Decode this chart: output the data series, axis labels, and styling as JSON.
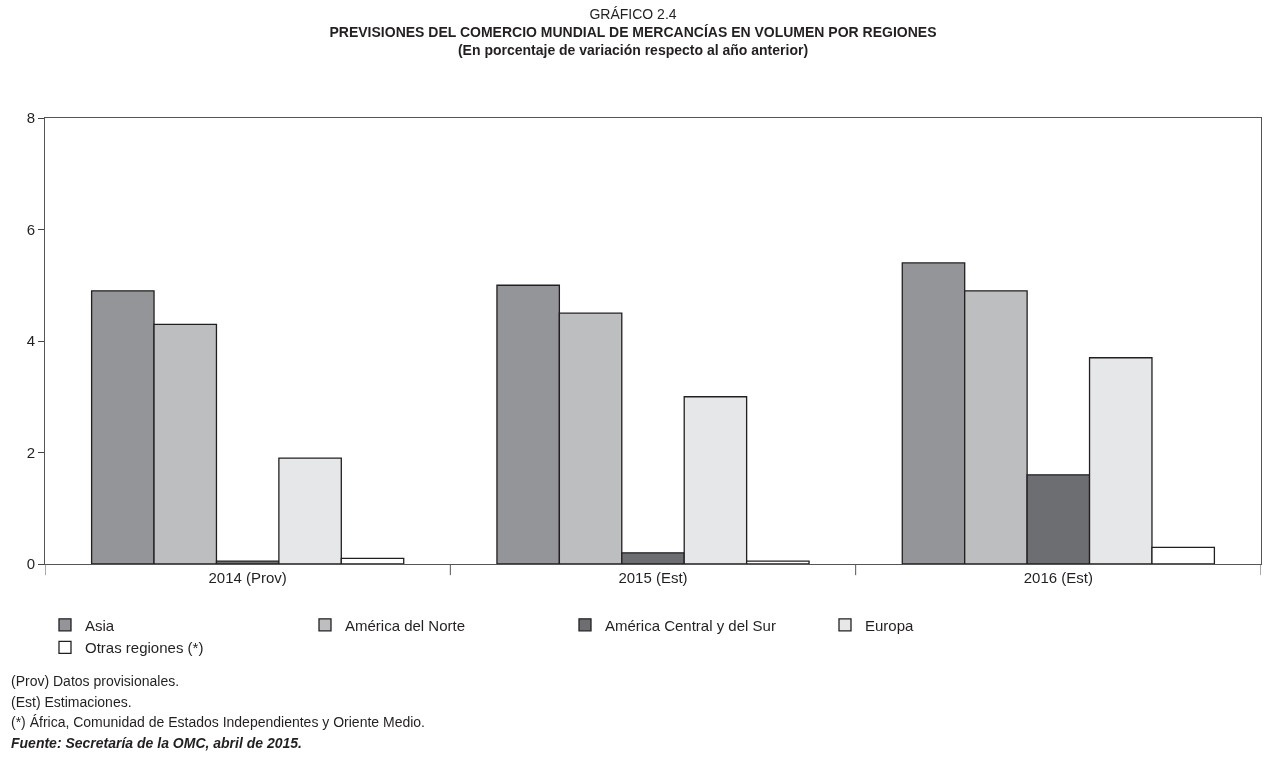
{
  "chart_data": {
    "type": "bar",
    "title": "GRÁFICO 2.4",
    "subtitle": "PREVISIONES DEL COMERCIO MUNDIAL DE MERCANCÍAS EN VOLUMEN POR REGIONES\n(En porcentaje de variación respecto al año anterior)",
    "categories": [
      "2014 (Prov)",
      "2015 (Est)",
      "2016 (Est)"
    ],
    "series": [
      {
        "name": "Asia",
        "color": "#939598",
        "values": [
          4.9,
          5.0,
          5.4
        ]
      },
      {
        "name": "América del Norte",
        "color": "#bcbec0",
        "values": [
          4.3,
          4.5,
          4.9
        ]
      },
      {
        "name": "América Central y del Sur",
        "color": "#6d6e71",
        "values": [
          0.05,
          0.2,
          1.6
        ]
      },
      {
        "name": "Europa",
        "color": "#e6e7e8",
        "values": [
          1.9,
          3.0,
          3.7
        ]
      },
      {
        "name": "Otras regiones (*)",
        "color": "#ffffff",
        "values": [
          0.1,
          0.05,
          0.3
        ]
      }
    ],
    "ylim": [
      0,
      8
    ],
    "yticks": [
      0,
      2,
      4,
      6,
      8
    ],
    "grid": false,
    "legend": "bottom",
    "annotations": [
      "(Prov) Datos provisionales.",
      "(Est) Estimaciones.",
      "(*) África, Comunidad de Estados Independientes y Oriente Medio.",
      "Fuente: Secretaría de la OMC, abril de 2015."
    ]
  }
}
